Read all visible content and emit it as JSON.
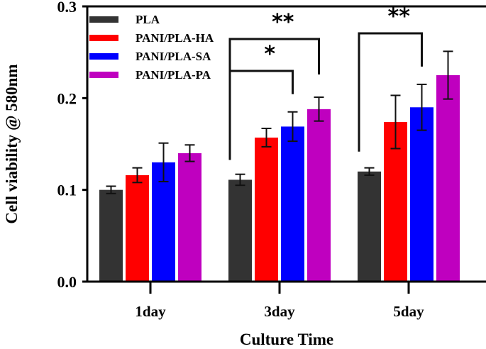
{
  "chart_data": {
    "type": "bar",
    "title": "",
    "xlabel": "Culture Time",
    "ylabel": "Cell viability @ 580nm",
    "ylim": [
      0,
      0.3
    ],
    "yticks": [
      "0.0",
      "0.1",
      "0.2",
      "0.3"
    ],
    "categories": [
      "1day",
      "3day",
      "5day"
    ],
    "legend_position": "top-left",
    "grid": false,
    "series": [
      {
        "name": "PLA",
        "color": "#333333",
        "values": [
          0.1,
          0.111,
          0.12
        ],
        "errors": [
          0.004,
          0.006,
          0.004
        ]
      },
      {
        "name": "PANI/PLA-HA",
        "color": "#ff0000",
        "values": [
          0.116,
          0.157,
          0.174
        ],
        "errors": [
          0.008,
          0.01,
          0.029
        ]
      },
      {
        "name": "PANI/PLA-SA",
        "color": "#0000ff",
        "values": [
          0.13,
          0.169,
          0.19
        ],
        "errors": [
          0.021,
          0.016,
          0.025
        ]
      },
      {
        "name": "PANI/PLA-PA",
        "color": "#bf00bf",
        "values": [
          0.14,
          0.188,
          0.225
        ],
        "errors": [
          0.009,
          0.013,
          0.026
        ]
      }
    ],
    "significance": [
      {
        "category": "3day",
        "from": "PLA",
        "to": "PANI/PLA-PA",
        "label": "**"
      },
      {
        "category": "3day",
        "from": "PLA",
        "to": "PANI/PLA-SA",
        "label": "*"
      },
      {
        "category": "5day",
        "from": "PLA",
        "to": "PANI/PLA-SA",
        "label": "**"
      }
    ]
  }
}
